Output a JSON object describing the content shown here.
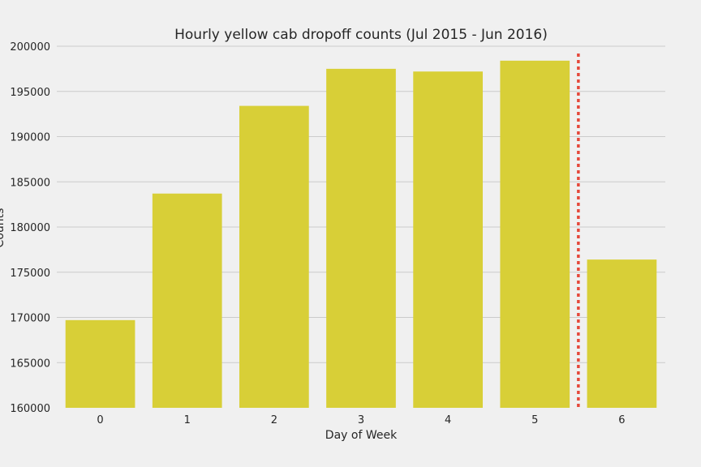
{
  "chart_data": {
    "type": "bar",
    "title": "Hourly yellow cab dropoff counts (Jul 2015 - Jun 2016)",
    "xlabel": "Day of Week",
    "ylabel": "Counts",
    "categories": [
      "0",
      "1",
      "2",
      "3",
      "4",
      "5",
      "6"
    ],
    "values": [
      169700,
      183700,
      193400,
      197500,
      197200,
      198400,
      176400
    ],
    "ylim": [
      160000,
      200000
    ],
    "yticks": [
      160000,
      165000,
      170000,
      175000,
      180000,
      185000,
      190000,
      195000,
      200000
    ],
    "grid": true,
    "legend": "none",
    "reference_line": {
      "style": "dotted",
      "between_categories": [
        "5",
        "6"
      ]
    },
    "colors": {
      "bar": "#d8cf37",
      "reference_line": "#e5483b",
      "grid": "#cbcbcb",
      "background": "#f0f0f0"
    }
  }
}
